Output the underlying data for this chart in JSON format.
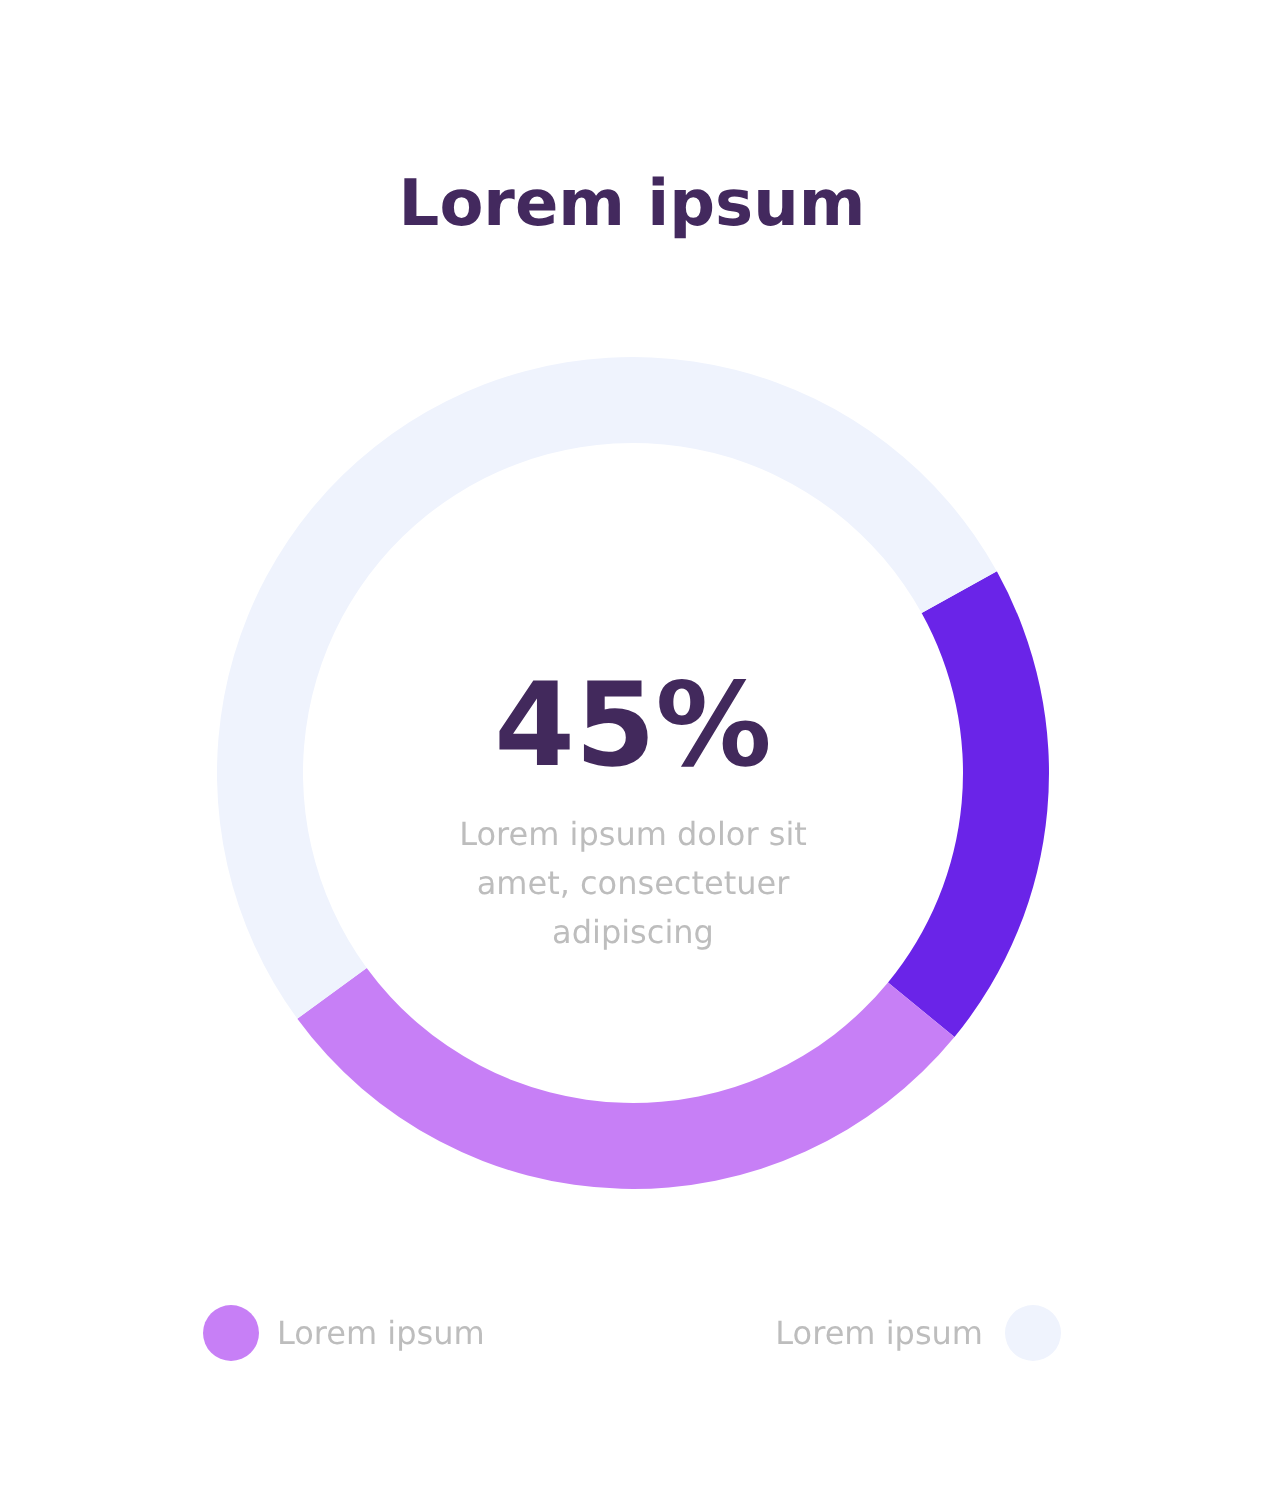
{
  "chart_data": {
    "type": "donut",
    "title": "Lorem ipsum",
    "categories": [
      null,
      "Lorem ipsum",
      "Lorem ipsum"
    ],
    "values": [
      19,
      29,
      52
    ],
    "colors": [
      "#6a24e8",
      "#c77ff6",
      "#eff3fd"
    ],
    "annotations": [
      "45%",
      "Lorem ipsum dolor sit amet, consectetuer adipiscing"
    ],
    "legend": "bottom"
  }
}
